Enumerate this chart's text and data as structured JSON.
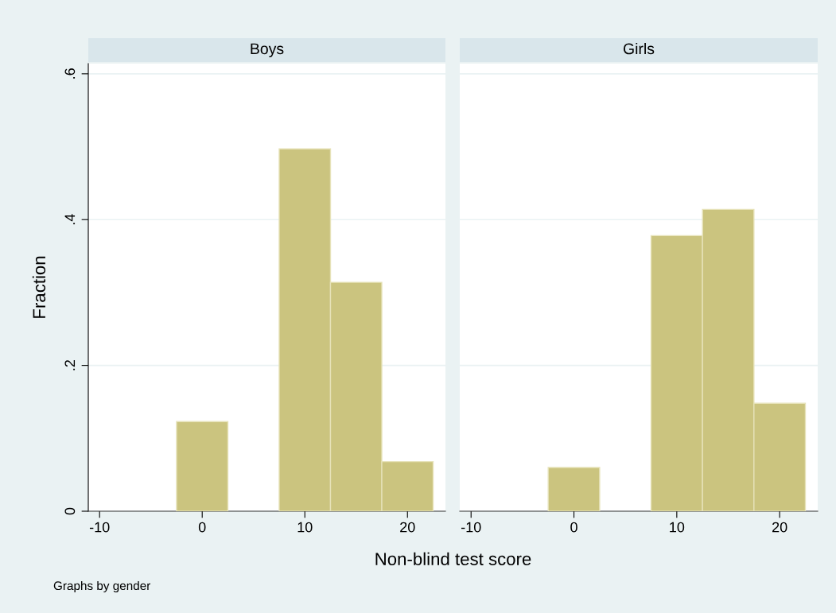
{
  "chart_data": [
    {
      "type": "histogram",
      "title": "Boys",
      "xlabel": "Non-blind test score",
      "ylabel": "Fraction",
      "annotations": [
        "Graphs by gender"
      ],
      "bins": [
        -2.5,
        2.5,
        7.5,
        12.5,
        17.5,
        22.5
      ],
      "values": [
        0.123,
        0,
        0.497,
        0.314,
        0.068
      ],
      "color": "#cbc47f",
      "xlim": [
        -11.1,
        23.7
      ],
      "xticks": [
        -10,
        0,
        10,
        20
      ],
      "ylim": [
        0,
        0.614
      ],
      "yticks": [
        0,
        {
          "value": 0.2,
          "label": ".2"
        },
        {
          "value": 0.4,
          "label": ".4"
        },
        {
          "value": 0.6,
          "label": ".6"
        }
      ],
      "grid": "y"
    },
    {
      "type": "histogram",
      "title": "Girls",
      "bins": [
        -2.5,
        2.5,
        7.5,
        12.5,
        17.5,
        22.5
      ],
      "values": [
        0.06,
        0,
        0.378,
        0.414,
        0.148
      ],
      "color": "#cbc47f",
      "xlim": [
        -11.1,
        23.7
      ],
      "xticks": [
        -10,
        0,
        10,
        20
      ],
      "ylim": [
        0,
        0.614
      ],
      "yticks": [
        {
          "value": 0,
          "label": null
        },
        {
          "value": 0.2,
          "label": null
        },
        {
          "value": 0.4,
          "label": null
        },
        {
          "value": 0.6,
          "label": null
        }
      ],
      "grid": "y",
      "tick_labels": "x"
    }
  ]
}
